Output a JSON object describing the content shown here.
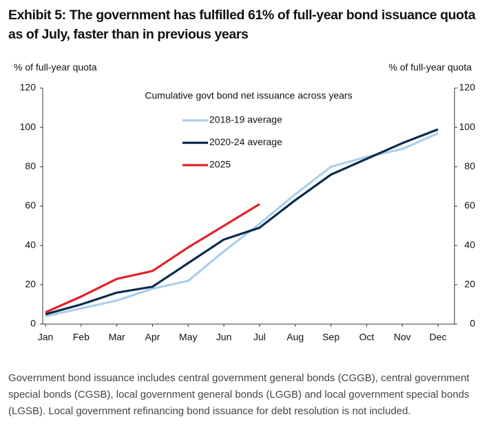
{
  "chart_data": {
    "type": "line",
    "title": "Exhibit 5: The government has fulfilled 61% of full-year bond issuance quota as of July, faster than in previous years",
    "subtitle": "Cumulative govt bond net issuance across years",
    "ylabel": "% of full-year quota",
    "y2label": "% of full-year quota",
    "categories": [
      "Jan",
      "Feb",
      "Mar",
      "Apr",
      "May",
      "Jun",
      "Jul",
      "Aug",
      "Sep",
      "Oct",
      "Nov",
      "Dec"
    ],
    "series": [
      {
        "name": "2018-19 average",
        "color": "#a9cfea",
        "values": [
          4,
          8,
          12,
          18,
          22,
          37,
          51,
          66,
          80,
          85,
          89,
          97
        ]
      },
      {
        "name": "2020-24 average",
        "color": "#0b2a4f",
        "values": [
          5,
          10,
          16,
          19,
          31,
          43,
          49,
          63,
          76,
          84,
          92,
          99
        ]
      },
      {
        "name": "2025",
        "color": "#e3202a",
        "values": [
          6,
          14,
          23,
          27,
          39,
          50,
          61,
          null,
          null,
          null,
          null,
          null
        ]
      }
    ],
    "ylim": [
      0,
      120
    ],
    "yticks": [
      0,
      20,
      40,
      60,
      80,
      100,
      120
    ],
    "y2lim": [
      0,
      120
    ],
    "y2ticks": [
      0,
      20,
      40,
      60,
      80,
      100,
      120
    ],
    "note": "Government bond issuance includes central government general bonds (CGGB), central government special bonds (CGSB), local government general bonds (LGGB) and local government special bonds (LGSB). Local government refinancing bond issuance for debt resolution is not included."
  }
}
